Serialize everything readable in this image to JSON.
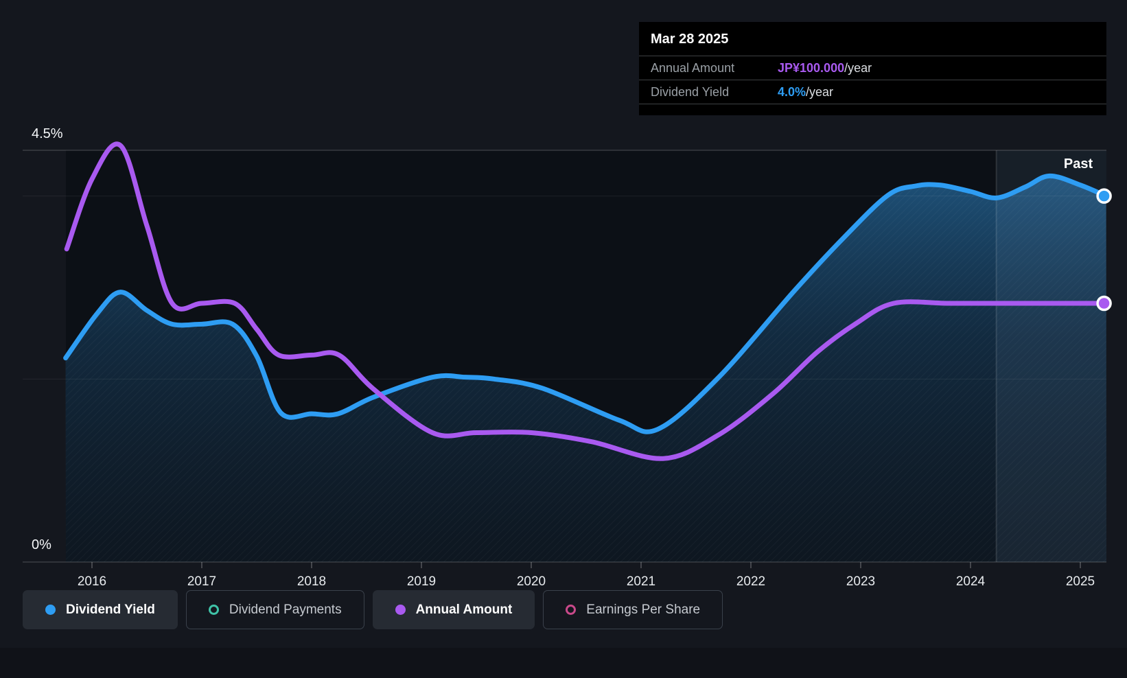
{
  "colors": {
    "bg": "#14171e",
    "plot-bg": "#0c1016",
    "blue": "#2e9df3",
    "purple": "#a95af0",
    "teal": "#3fc2a7",
    "pink": "#c9498a",
    "tooltip-bg": "#000000",
    "label-gray": "#9aa0a6",
    "text-white": "#ffffff",
    "legend-active-bg": "#262b33",
    "legend-border": "#3a414b",
    "legend-inactive-text": "#c6cad0"
  },
  "tooltip": {
    "title": "Mar 28 2025",
    "rows": [
      {
        "label": "Annual Amount",
        "value": "JP¥100.000",
        "unit": "/year",
        "color_key": "purple"
      },
      {
        "label": "Dividend Yield",
        "value": "4.0%",
        "unit": "/year",
        "color_key": "blue"
      }
    ]
  },
  "past_label": "Past",
  "yaxis": {
    "top_label": "4.5%",
    "bottom_label": "0%",
    "gridlines_pct": [
      4.5,
      4.0,
      2.0,
      0.0
    ]
  },
  "xaxis": {
    "years": [
      2016,
      2017,
      2018,
      2019,
      2020,
      2021,
      2022,
      2023,
      2024,
      2025
    ]
  },
  "legend": {
    "items": [
      {
        "label": "Dividend Yield",
        "color_key": "blue",
        "active": true,
        "marker": "filled"
      },
      {
        "label": "Dividend Payments",
        "color_key": "teal",
        "active": false,
        "marker": "ring"
      },
      {
        "label": "Annual Amount",
        "color_key": "purple",
        "active": true,
        "marker": "filled"
      },
      {
        "label": "Earnings Per Share",
        "color_key": "pink",
        "active": false,
        "marker": "ring"
      }
    ]
  },
  "chart_data": {
    "type": "area",
    "title": "Dividend history and forecast",
    "x_range": [
      2015.76,
      2025.24
    ],
    "past_divider_x": 2024.235,
    "percent_axis": {
      "min": 0,
      "max": 4.5,
      "top_gridline_label": "4.5%",
      "bottom_label": "0%"
    },
    "amount_axis": {
      "unit": "JP¥/year",
      "reference_value": 100,
      "note": "purple series plotted on separate yen scale; ends at JP¥100.000/year on Mar 28 2025"
    },
    "series": [
      {
        "name": "Dividend Yield",
        "unit": "%",
        "color_key": "blue",
        "axis": "percent",
        "fill_area": true,
        "end_value_label": "4.0%/year",
        "points": [
          [
            2015.76,
            2.23
          ],
          [
            2016.05,
            2.72
          ],
          [
            2016.26,
            2.95
          ],
          [
            2016.5,
            2.75
          ],
          [
            2016.73,
            2.6
          ],
          [
            2017.0,
            2.6
          ],
          [
            2017.28,
            2.6
          ],
          [
            2017.5,
            2.25
          ],
          [
            2017.72,
            1.63
          ],
          [
            2018.0,
            1.62
          ],
          [
            2018.24,
            1.62
          ],
          [
            2018.56,
            1.8
          ],
          [
            2019.1,
            2.02
          ],
          [
            2019.4,
            2.02
          ],
          [
            2019.66,
            2.0
          ],
          [
            2020.1,
            1.9
          ],
          [
            2020.8,
            1.55
          ],
          [
            2021.15,
            1.45
          ],
          [
            2021.7,
            2.01
          ],
          [
            2022.4,
            2.97
          ],
          [
            2022.85,
            3.55
          ],
          [
            2023.25,
            4.01
          ],
          [
            2023.5,
            4.11
          ],
          [
            2023.72,
            4.12
          ],
          [
            2024.0,
            4.05
          ],
          [
            2024.24,
            3.98
          ],
          [
            2024.5,
            4.1
          ],
          [
            2024.72,
            4.22
          ],
          [
            2025.0,
            4.12
          ],
          [
            2025.235,
            4.0
          ]
        ]
      },
      {
        "name": "Annual Amount",
        "unit": "JP¥",
        "color_key": "purple",
        "axis": "yen",
        "fill_area": false,
        "end_value_label": "JP¥100.000/year",
        "points": [
          [
            2015.77,
            121
          ],
          [
            2016.0,
            148
          ],
          [
            2016.26,
            161
          ],
          [
            2016.5,
            130
          ],
          [
            2016.73,
            100
          ],
          [
            2017.0,
            100
          ],
          [
            2017.3,
            100
          ],
          [
            2017.5,
            90
          ],
          [
            2017.7,
            80
          ],
          [
            2018.0,
            80
          ],
          [
            2018.25,
            80
          ],
          [
            2018.56,
            67
          ],
          [
            2019.1,
            50
          ],
          [
            2019.5,
            50
          ],
          [
            2020.0,
            50
          ],
          [
            2020.55,
            46.5
          ],
          [
            2021.2,
            40
          ],
          [
            2021.7,
            49
          ],
          [
            2022.2,
            65
          ],
          [
            2022.6,
            81
          ],
          [
            2022.95,
            92
          ],
          [
            2023.3,
            100
          ],
          [
            2023.8,
            100
          ],
          [
            2024.3,
            100
          ],
          [
            2024.8,
            100
          ],
          [
            2025.235,
            100
          ]
        ]
      }
    ],
    "legend_entries_inactive": [
      "Dividend Payments",
      "Earnings Per Share"
    ]
  }
}
